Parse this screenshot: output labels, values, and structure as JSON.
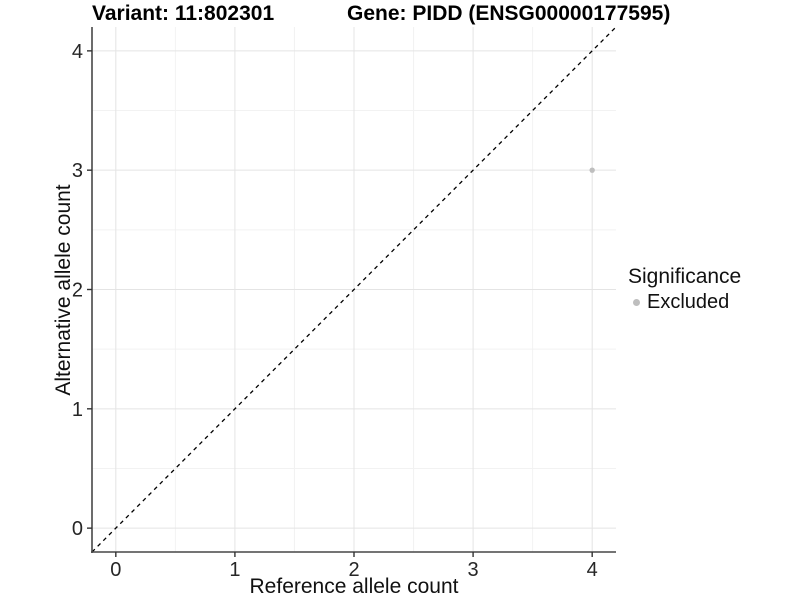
{
  "chart_data": {
    "type": "scatter",
    "title_left": "Variant: 11:802301",
    "title_right": "Gene: PIDD (ENSG00000177595)",
    "xlabel": "Reference allele count",
    "ylabel": "Alternative allele count",
    "xlim": [
      -0.2,
      4.2
    ],
    "ylim": [
      -0.2,
      4.2
    ],
    "xticks": [
      0,
      1,
      2,
      3,
      4
    ],
    "yticks": [
      0,
      1,
      2,
      3,
      4
    ],
    "minor_ticks": [
      0.5,
      1.5,
      2.5,
      3.5
    ],
    "grid": "on",
    "diagonal": {
      "style": "dashed",
      "from": [
        -0.2,
        -0.2
      ],
      "to": [
        4.2,
        4.2
      ],
      "meaning": "identity line y = x"
    },
    "series": [
      {
        "name": "Excluded",
        "color": "#bebebe",
        "points": [
          {
            "x": 4,
            "y": 3
          }
        ]
      }
    ],
    "legend": {
      "title": "Significance",
      "position": "right",
      "entries": [
        {
          "label": "Excluded",
          "color": "#bebebe"
        }
      ]
    },
    "colors": {
      "background": "#ffffff",
      "grid_major": "#e4e4e4",
      "grid_minor": "#f2f2f2",
      "axis_line": "#474747",
      "tick_mark": "#333333",
      "tick_label": "#262626",
      "diagonal_line": "#000000",
      "point": "#bebebe"
    }
  }
}
